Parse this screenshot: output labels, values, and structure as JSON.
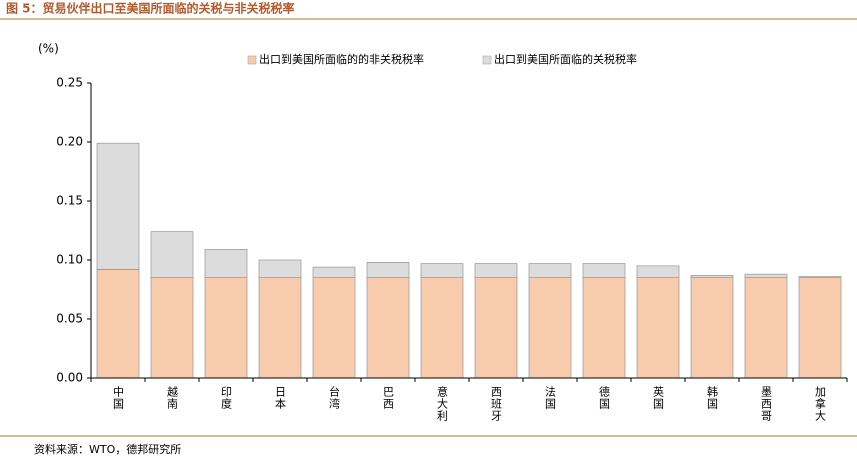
{
  "chart_data": {
    "type": "stacked_bar",
    "title": "图 5：贸易伙伴出口至美国所面临的关税与非关税税率",
    "y_unit_label": "(%)",
    "source": "资料来源：WTO，德邦研究所",
    "categories": [
      "中国",
      "越南",
      "印度",
      "日本",
      "台湾",
      "巴西",
      "意大利",
      "西班牙",
      "法国",
      "德国",
      "英国",
      "韩国",
      "墨西哥",
      "加拿大"
    ],
    "series": [
      {
        "name": "出口到美国所面临的的非关税税率",
        "color": "#f8cbad",
        "values": [
          0.092,
          0.085,
          0.085,
          0.085,
          0.085,
          0.085,
          0.085,
          0.085,
          0.085,
          0.085,
          0.085,
          0.085,
          0.085,
          0.085
        ]
      },
      {
        "name": "出口到美国所面临的关税税率",
        "color": "#dcdcdc",
        "values": [
          0.107,
          0.039,
          0.024,
          0.015,
          0.009,
          0.013,
          0.012,
          0.012,
          0.012,
          0.012,
          0.01,
          0.002,
          0.003,
          0.001
        ]
      }
    ],
    "ylim": [
      0,
      0.25
    ],
    "yticks": [
      {
        "value": 0,
        "label": "0.00"
      },
      {
        "value": 0.05,
        "label": "0.05"
      },
      {
        "value": 0.1,
        "label": "0.10"
      },
      {
        "value": 0.15,
        "label": "0.15"
      },
      {
        "value": 0.2,
        "label": "0.20"
      },
      {
        "value": 0.25,
        "label": "0.25"
      }
    ]
  }
}
